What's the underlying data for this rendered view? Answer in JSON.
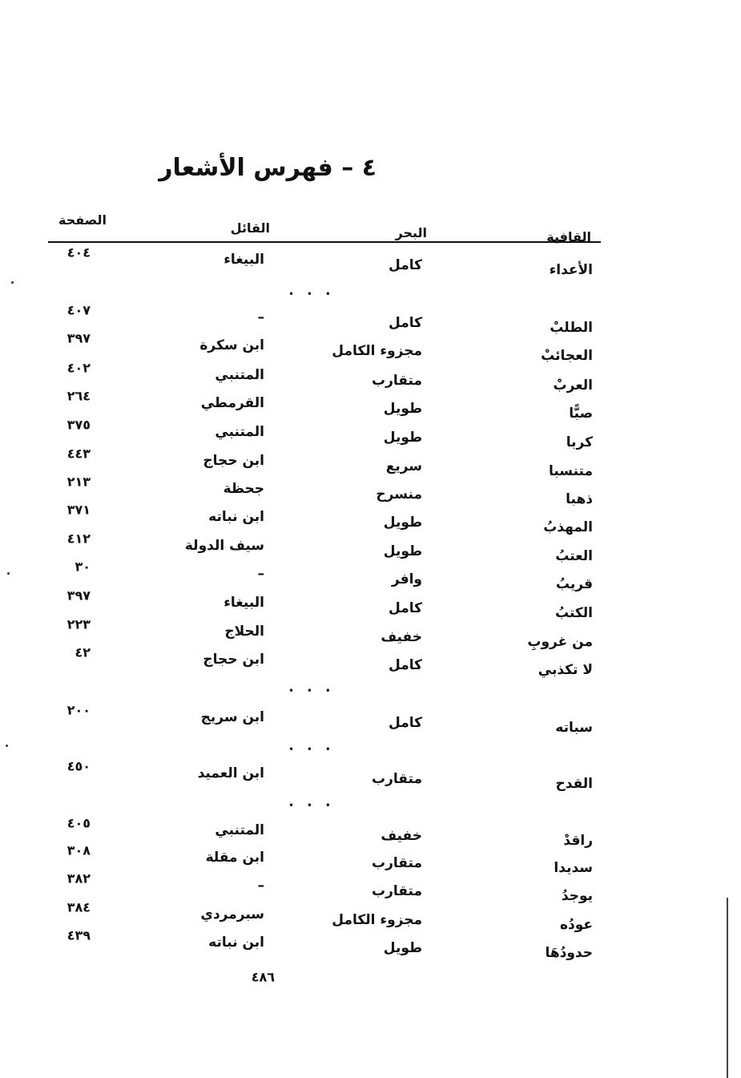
{
  "title": "٤ – فهرس الأشعار",
  "headers": {
    "rhyme": "القافية",
    "meter": "البحر",
    "poet": "القائل",
    "page": "الصفحة"
  },
  "separator": "• • •",
  "groups": [
    {
      "rows": [
        {
          "rhyme": "الأعداء",
          "meter": "كامل",
          "poet": "البيغاء",
          "page": "٤٠٤"
        }
      ]
    },
    {
      "rows": [
        {
          "rhyme": "الطلبْ",
          "meter": "كامل",
          "poet": "–",
          "page": "٤٠٧"
        },
        {
          "rhyme": "العجائبْ",
          "meter": "مجزوء الكامل",
          "poet": "ابن سكرة",
          "page": "٣٩٧"
        },
        {
          "rhyme": "العربْ",
          "meter": "متقارب",
          "poet": "المتنبي",
          "page": "٤٠٢"
        },
        {
          "rhyme": "صبًّا",
          "meter": "طويل",
          "poet": "القرمطي",
          "page": "٢٦٤"
        },
        {
          "rhyme": "كربا",
          "meter": "طويل",
          "poet": "المتنبي",
          "page": "٣٧٥"
        },
        {
          "rhyme": "متنسبا",
          "meter": "سريع",
          "poet": "ابن حجاج",
          "page": "٤٤٣"
        },
        {
          "rhyme": "ذهبا",
          "meter": "منسرح",
          "poet": "جحظة",
          "page": "٢١٣"
        },
        {
          "rhyme": "المهذبُ",
          "meter": "طويل",
          "poet": "ابن نباته",
          "page": "٣٧١"
        },
        {
          "rhyme": "العتبُ",
          "meter": "طويل",
          "poet": "سيف الدولة",
          "page": "٤١٢"
        },
        {
          "rhyme": "قريبُ",
          "meter": "وافر",
          "poet": "–",
          "page": "٣٠"
        },
        {
          "rhyme": "الكتبُ",
          "meter": "كامل",
          "poet": "البيغاء",
          "page": "٣٩٧"
        },
        {
          "rhyme": "من غروبِ",
          "meter": "خفيف",
          "poet": "الحلاج",
          "page": "٢٢٣"
        },
        {
          "rhyme": "لا تكذبي",
          "meter": "كامل",
          "poet": "ابن حجاج",
          "page": "٤٢"
        }
      ]
    },
    {
      "rows": [
        {
          "rhyme": "سباته",
          "meter": "كامل",
          "poet": "ابن سريج",
          "page": "٢٠٠"
        }
      ]
    },
    {
      "rows": [
        {
          "rhyme": "القدح",
          "meter": "متقارب",
          "poet": "ابن العميد",
          "page": "٤٥٠"
        }
      ]
    },
    {
      "rows": [
        {
          "rhyme": "راقدْ",
          "meter": "خفيف",
          "poet": "المتنبي",
          "page": "٤٠٥"
        },
        {
          "rhyme": "سديدا",
          "meter": "متقارب",
          "poet": "ابن مقلة",
          "page": "٣٠٨"
        },
        {
          "rhyme": "يوجدُ",
          "meter": "متقارب",
          "poet": "–",
          "page": "٣٨٢"
        },
        {
          "rhyme": "عودُه",
          "meter": "مجزوء الكامل",
          "poet": "سبرمردي",
          "page": "٣٨٤"
        },
        {
          "rhyme": "حدودُهَا",
          "meter": "طويل",
          "poet": "ابن نباته",
          "page": "٤٣٩"
        }
      ]
    }
  ],
  "page_number": "٤٨٦"
}
